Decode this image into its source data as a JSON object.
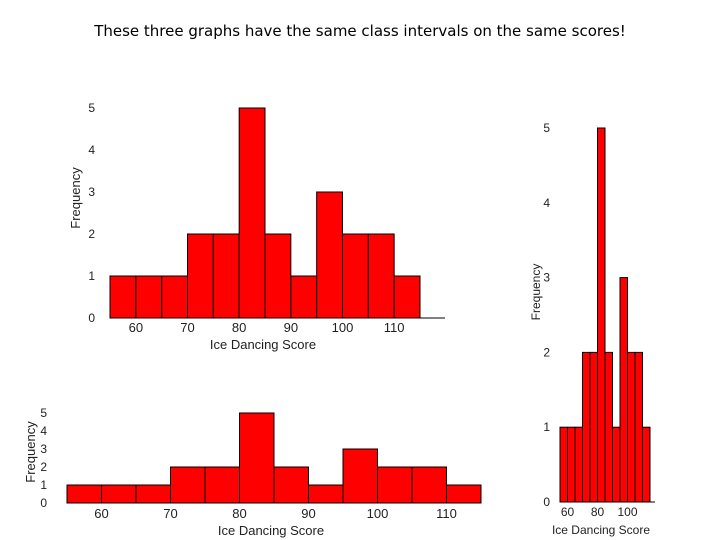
{
  "title": "These three graphs have the same class intervals on the same scores!",
  "colors": {
    "bar_fill": "#ff0000",
    "bar_stroke": "#000000",
    "axis": "#000000"
  },
  "chart_data": [
    {
      "type": "bar",
      "id": "histogram-top",
      "xlabel": "Ice Dancing Score",
      "ylabel": "Frequency",
      "bin_width": 5,
      "bins": [
        {
          "start": 55,
          "end": 60,
          "value": 1
        },
        {
          "start": 60,
          "end": 65,
          "value": 1
        },
        {
          "start": 65,
          "end": 70,
          "value": 1
        },
        {
          "start": 70,
          "end": 75,
          "value": 2
        },
        {
          "start": 75,
          "end": 80,
          "value": 2
        },
        {
          "start": 80,
          "end": 85,
          "value": 5
        },
        {
          "start": 85,
          "end": 90,
          "value": 2
        },
        {
          "start": 90,
          "end": 95,
          "value": 1
        },
        {
          "start": 95,
          "end": 100,
          "value": 3
        },
        {
          "start": 100,
          "end": 105,
          "value": 2
        },
        {
          "start": 105,
          "end": 110,
          "value": 2
        },
        {
          "start": 110,
          "end": 115,
          "value": 1
        }
      ],
      "xticks": [
        60,
        70,
        80,
        90,
        100,
        110
      ],
      "yticks": [
        0,
        1,
        2,
        3,
        4,
        5
      ],
      "xlim": [
        55,
        115
      ],
      "ylim": [
        0,
        5
      ]
    },
    {
      "type": "bar",
      "id": "histogram-bottom",
      "xlabel": "Ice Dancing Score",
      "ylabel": "Frequency",
      "bin_width": 5,
      "bins": [
        {
          "start": 55,
          "end": 60,
          "value": 1
        },
        {
          "start": 60,
          "end": 65,
          "value": 1
        },
        {
          "start": 65,
          "end": 70,
          "value": 1
        },
        {
          "start": 70,
          "end": 75,
          "value": 2
        },
        {
          "start": 75,
          "end": 80,
          "value": 2
        },
        {
          "start": 80,
          "end": 85,
          "value": 5
        },
        {
          "start": 85,
          "end": 90,
          "value": 2
        },
        {
          "start": 90,
          "end": 95,
          "value": 1
        },
        {
          "start": 95,
          "end": 100,
          "value": 3
        },
        {
          "start": 100,
          "end": 105,
          "value": 2
        },
        {
          "start": 105,
          "end": 110,
          "value": 2
        },
        {
          "start": 110,
          "end": 115,
          "value": 1
        }
      ],
      "xticks": [
        60,
        70,
        80,
        90,
        100,
        110
      ],
      "yticks": [
        0,
        1,
        2,
        3,
        4,
        5
      ],
      "xlim": [
        55,
        115
      ],
      "ylim": [
        0,
        5
      ]
    },
    {
      "type": "bar",
      "id": "histogram-right",
      "xlabel": "Ice Dancing Score",
      "ylabel": "Frequency",
      "bin_width": 5,
      "bins": [
        {
          "start": 55,
          "end": 60,
          "value": 1
        },
        {
          "start": 60,
          "end": 65,
          "value": 1
        },
        {
          "start": 65,
          "end": 70,
          "value": 1
        },
        {
          "start": 70,
          "end": 75,
          "value": 2
        },
        {
          "start": 75,
          "end": 80,
          "value": 2
        },
        {
          "start": 80,
          "end": 85,
          "value": 5
        },
        {
          "start": 85,
          "end": 90,
          "value": 2
        },
        {
          "start": 90,
          "end": 95,
          "value": 1
        },
        {
          "start": 95,
          "end": 100,
          "value": 3
        },
        {
          "start": 100,
          "end": 105,
          "value": 2
        },
        {
          "start": 105,
          "end": 110,
          "value": 2
        },
        {
          "start": 110,
          "end": 115,
          "value": 1
        }
      ],
      "xticks": [
        60,
        80,
        100
      ],
      "yticks": [
        0,
        1,
        2,
        3,
        4,
        5
      ],
      "xlim": [
        55,
        115
      ],
      "ylim": [
        0,
        5
      ]
    }
  ]
}
